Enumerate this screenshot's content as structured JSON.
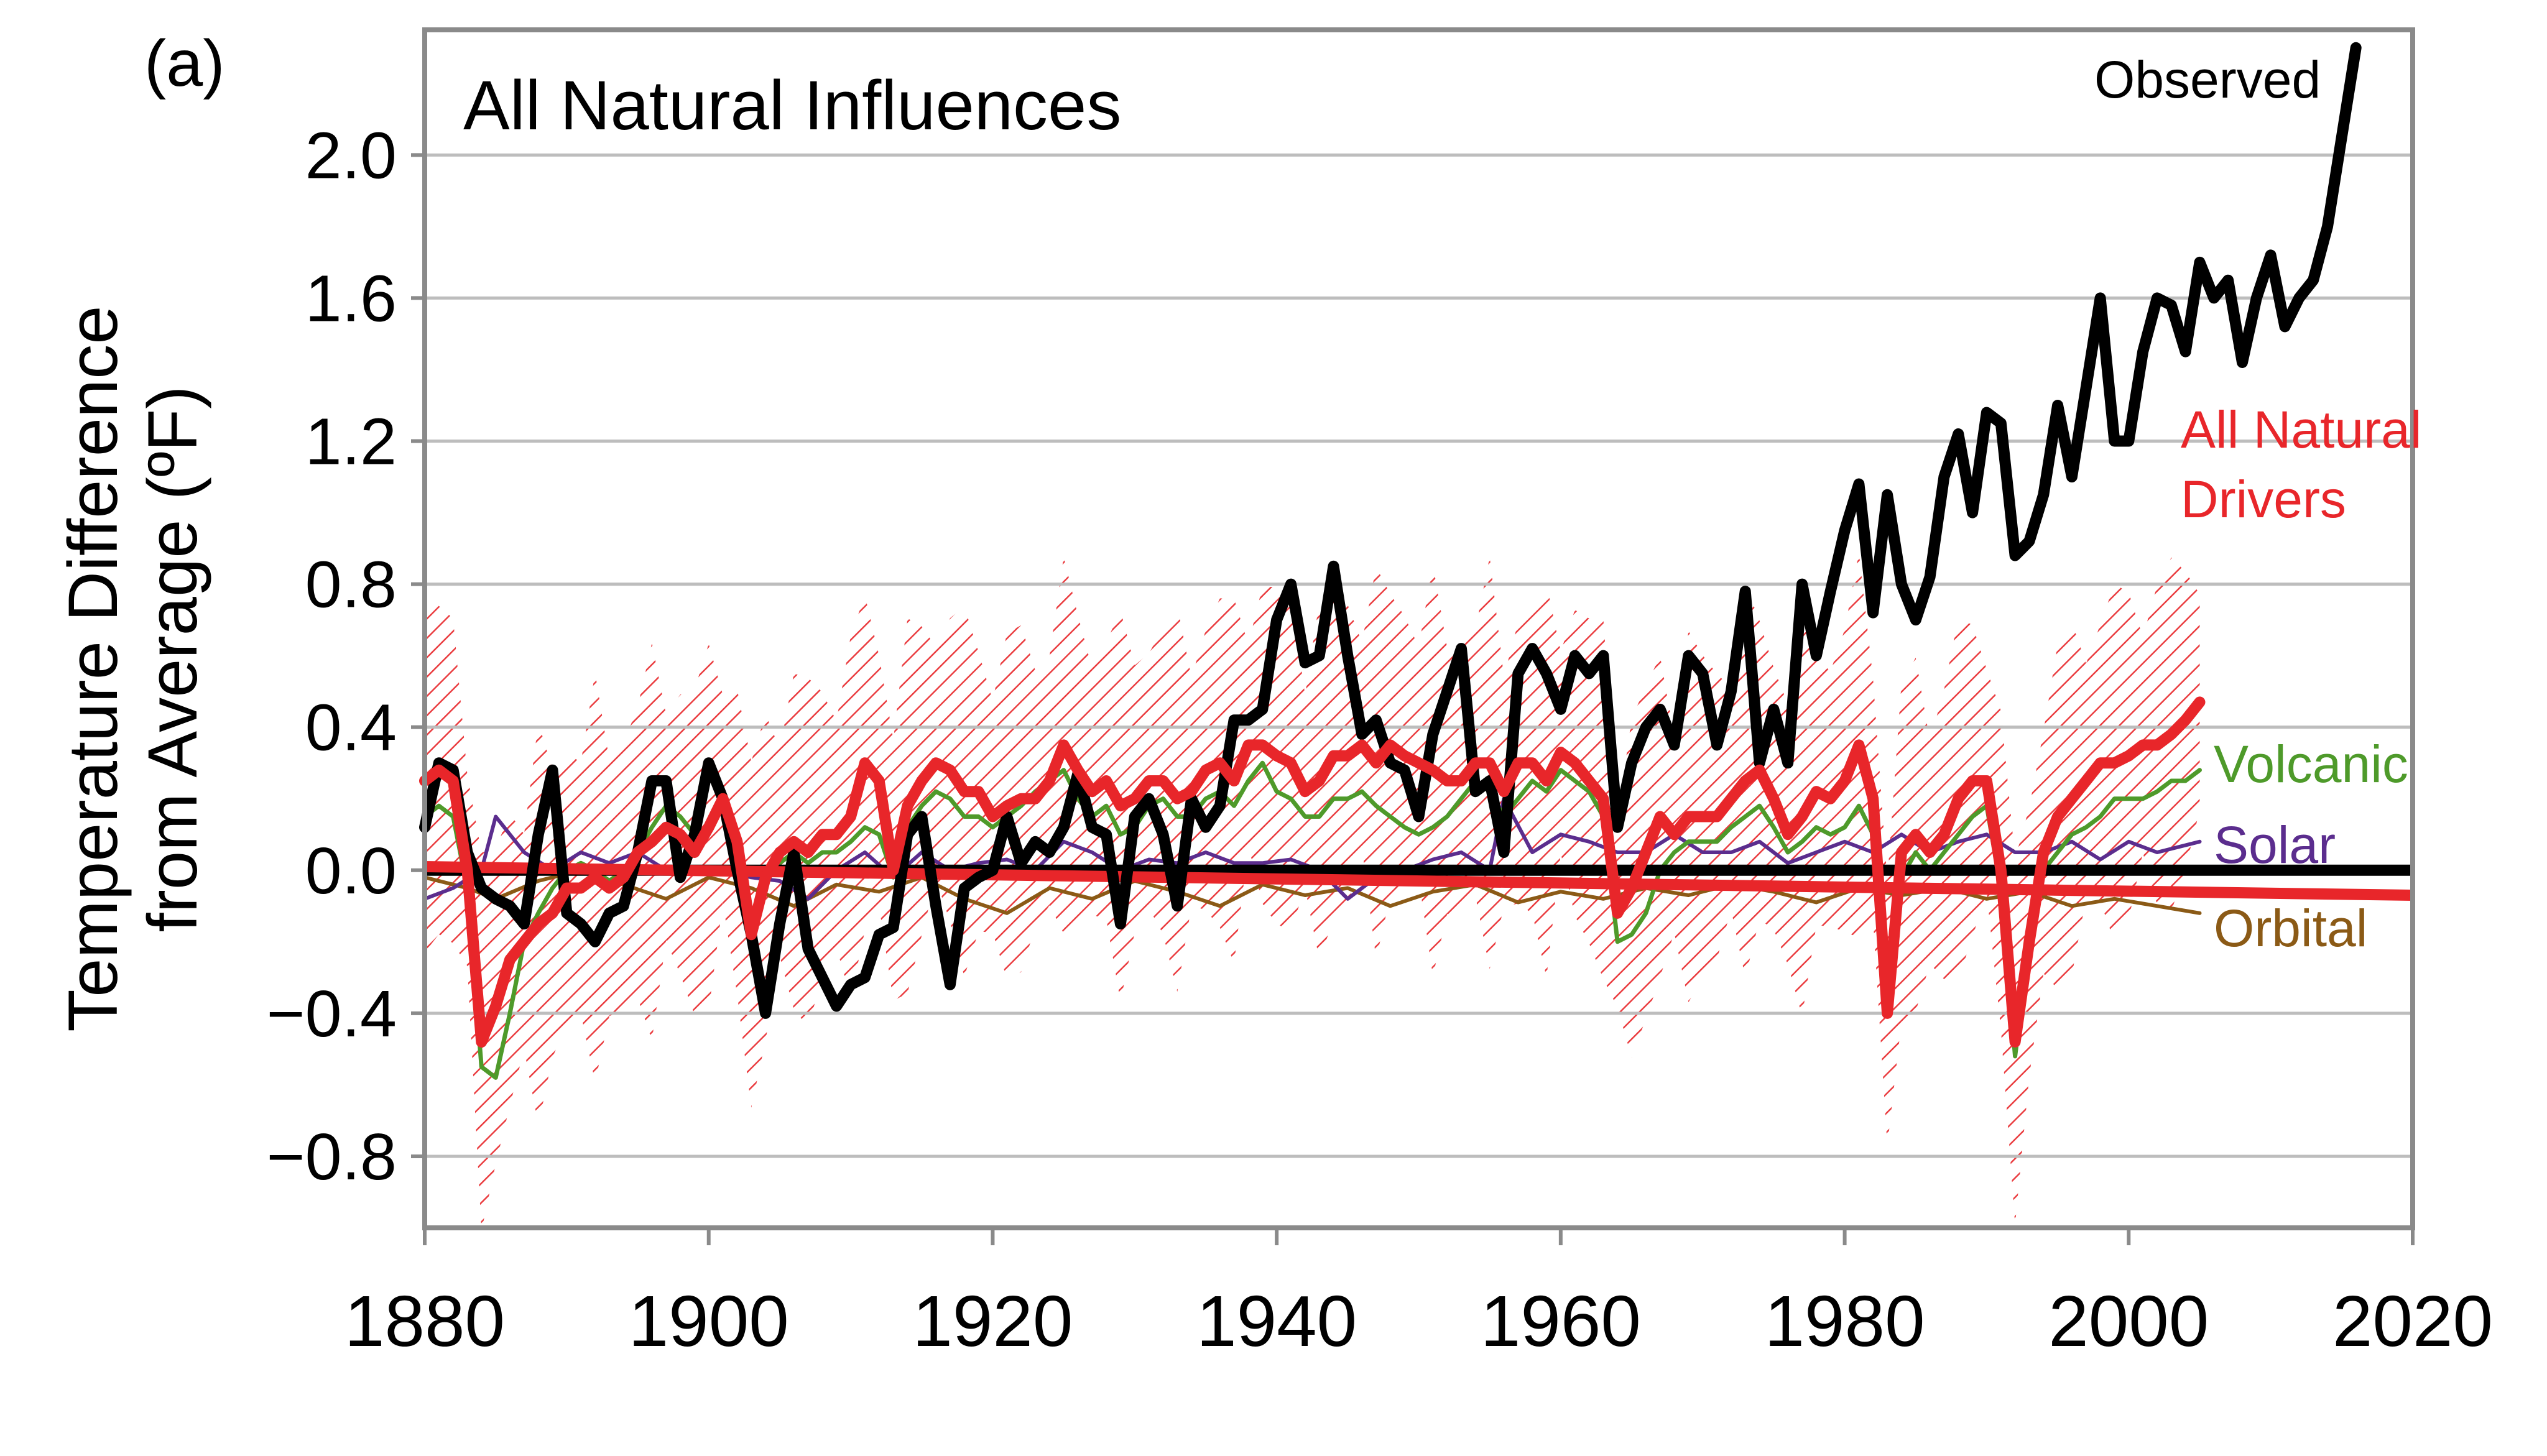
{
  "chart_data": {
    "type": "line",
    "panel_label": "(a)",
    "title": "All Natural Influences",
    "ylabel_lines": [
      "Temperature Difference",
      "from Average (ºF)"
    ],
    "xlabel": "",
    "xlim": [
      1880,
      2020
    ],
    "ylim": [
      -1.0,
      2.35
    ],
    "x_ticks": [
      1880,
      1900,
      1920,
      1940,
      1960,
      1980,
      2000,
      2020
    ],
    "y_ticks": [
      -0.8,
      -0.4,
      0.0,
      0.4,
      0.8,
      1.2,
      1.6,
      2.0
    ],
    "y_tick_labels": [
      "−0.8",
      "−0.4",
      "0.0",
      "0.4",
      "0.8",
      "1.2",
      "1.6",
      "2.0"
    ],
    "grid": "horizontal",
    "colors": {
      "observed": "#000000",
      "all_natural": "#e8262a",
      "volcanic": "#4e9a2a",
      "solar": "#5b2d8e",
      "orbital": "#8b5a16",
      "hatch": "#e8262a",
      "grid": "#bdbdbd",
      "frame": "#8a8a8a"
    },
    "series": [
      {
        "key": "observed",
        "labels": [
          "Observed"
        ],
        "x": [
          1880,
          1881,
          1882,
          1883,
          1884,
          1885,
          1886,
          1887,
          1888,
          1889,
          1890,
          1891,
          1892,
          1893,
          1894,
          1895,
          1896,
          1897,
          1898,
          1899,
          1900,
          1901,
          1902,
          1903,
          1904,
          1905,
          1906,
          1907,
          1908,
          1909,
          1910,
          1911,
          1912,
          1913,
          1914,
          1915,
          1916,
          1917,
          1918,
          1919,
          1920,
          1921,
          1922,
          1923,
          1924,
          1925,
          1926,
          1927,
          1928,
          1929,
          1930,
          1931,
          1932,
          1933,
          1934,
          1935,
          1936,
          1937,
          1938,
          1939,
          1940,
          1941,
          1942,
          1943,
          1944,
          1945,
          1946,
          1947,
          1948,
          1949,
          1950,
          1951,
          1952,
          1953,
          1954,
          1955,
          1956,
          1957,
          1958,
          1959,
          1960,
          1961,
          1962,
          1963,
          1964,
          1965,
          1966,
          1967,
          1968,
          1969,
          1970,
          1971,
          1972,
          1973,
          1974,
          1975,
          1976,
          1977,
          1978,
          1979,
          1980,
          1981,
          1982,
          1983,
          1984,
          1985,
          1986,
          1987,
          1988,
          1989,
          1990,
          1991,
          1992,
          1993,
          1994,
          1995,
          1996,
          1997,
          1998,
          1999,
          2000,
          2001,
          2002,
          2003,
          2004,
          2005,
          2006,
          2007,
          2008,
          2009,
          2010,
          2011,
          2012,
          2013,
          2014,
          2015,
          2016
        ],
        "values": [
          0.12,
          0.3,
          0.28,
          0.05,
          -0.05,
          -0.08,
          -0.1,
          -0.15,
          0.1,
          0.28,
          -0.12,
          -0.15,
          -0.2,
          -0.12,
          -0.1,
          0.05,
          0.25,
          0.25,
          -0.02,
          0.1,
          0.3,
          0.2,
          0.0,
          -0.18,
          -0.4,
          -0.15,
          0.05,
          -0.22,
          -0.3,
          -0.38,
          -0.32,
          -0.3,
          -0.18,
          -0.16,
          0.1,
          0.15,
          -0.1,
          -0.32,
          -0.05,
          -0.02,
          0.0,
          0.15,
          0.02,
          0.08,
          0.05,
          0.12,
          0.27,
          0.12,
          0.1,
          -0.15,
          0.15,
          0.2,
          0.1,
          -0.1,
          0.2,
          0.12,
          0.18,
          0.42,
          0.42,
          0.45,
          0.7,
          0.8,
          0.58,
          0.6,
          0.85,
          0.6,
          0.38,
          0.42,
          0.3,
          0.28,
          0.15,
          0.38,
          0.5,
          0.62,
          0.22,
          0.25,
          0.05,
          0.55,
          0.62,
          0.55,
          0.45,
          0.6,
          0.55,
          0.6,
          0.12,
          0.3,
          0.4,
          0.45,
          0.35,
          0.6,
          0.55,
          0.35,
          0.5,
          0.78,
          0.3,
          0.45,
          0.3,
          0.8,
          0.6,
          0.78,
          0.95,
          1.08,
          0.72,
          1.05,
          0.8,
          0.7,
          0.82,
          1.1,
          1.22,
          1.0,
          1.28,
          1.25,
          0.88,
          0.92,
          1.05,
          1.3,
          1.1,
          1.35,
          1.6,
          1.2,
          1.2,
          1.45,
          1.6,
          1.58,
          1.45,
          1.7,
          1.6,
          1.65,
          1.42,
          1.6,
          1.72,
          1.52,
          1.6,
          1.65,
          1.8,
          2.05,
          2.3
        ]
      },
      {
        "key": "all_natural",
        "labels": [
          "All Natural",
          "Drivers"
        ],
        "x": [
          1880,
          1881,
          1882,
          1883,
          1884,
          1885,
          1886,
          1887,
          1888,
          1889,
          1890,
          1891,
          1892,
          1893,
          1894,
          1895,
          1896,
          1897,
          1898,
          1899,
          1900,
          1901,
          1902,
          1903,
          1904,
          1905,
          1906,
          1907,
          1908,
          1909,
          1910,
          1911,
          1912,
          1913,
          1914,
          1915,
          1916,
          1917,
          1918,
          1919,
          1920,
          1921,
          1922,
          1923,
          1924,
          1925,
          1926,
          1927,
          1928,
          1929,
          1930,
          1931,
          1932,
          1933,
          1934,
          1935,
          1936,
          1937,
          1938,
          1939,
          1940,
          1941,
          1942,
          1943,
          1944,
          1945,
          1946,
          1947,
          1948,
          1949,
          1950,
          1951,
          1952,
          1953,
          1954,
          1955,
          1956,
          1957,
          1958,
          1959,
          1960,
          1961,
          1962,
          1963,
          1964,
          1965,
          1966,
          1967,
          1968,
          1969,
          1970,
          1971,
          1972,
          1973,
          1974,
          1975,
          1976,
          1977,
          1978,
          1979,
          1980,
          1981,
          1982,
          1983,
          1984,
          1985,
          1986,
          1987,
          1988,
          1989,
          1990,
          1991,
          1992,
          1993,
          1994,
          1995,
          1996,
          1997,
          1998,
          1999,
          2000,
          2001,
          2002,
          2003,
          2004,
          2005
        ],
        "values": [
          0.25,
          0.28,
          0.25,
          0.0,
          -0.48,
          -0.38,
          -0.25,
          -0.2,
          -0.15,
          -0.12,
          -0.05,
          -0.05,
          -0.02,
          -0.05,
          -0.02,
          0.05,
          0.08,
          0.12,
          0.1,
          0.05,
          0.12,
          0.2,
          0.08,
          -0.18,
          -0.02,
          0.05,
          0.08,
          0.05,
          0.1,
          0.1,
          0.15,
          0.3,
          0.25,
          0.0,
          0.18,
          0.25,
          0.3,
          0.28,
          0.22,
          0.22,
          0.15,
          0.18,
          0.2,
          0.2,
          0.25,
          0.35,
          0.28,
          0.22,
          0.25,
          0.18,
          0.2,
          0.25,
          0.25,
          0.2,
          0.22,
          0.28,
          0.3,
          0.25,
          0.35,
          0.35,
          0.32,
          0.3,
          0.22,
          0.25,
          0.32,
          0.32,
          0.35,
          0.3,
          0.35,
          0.32,
          0.3,
          0.28,
          0.25,
          0.25,
          0.3,
          0.3,
          0.22,
          0.3,
          0.3,
          0.25,
          0.33,
          0.3,
          0.25,
          0.2,
          -0.12,
          -0.05,
          0.05,
          0.15,
          0.1,
          0.15,
          0.15,
          0.15,
          0.2,
          0.25,
          0.28,
          0.2,
          0.1,
          0.15,
          0.22,
          0.2,
          0.25,
          0.35,
          0.2,
          -0.4,
          0.05,
          0.1,
          0.05,
          0.1,
          0.2,
          0.25,
          0.25,
          0.0,
          -0.48,
          -0.2,
          0.05,
          0.15,
          0.2,
          0.25,
          0.3,
          0.3,
          0.32,
          0.35,
          0.35,
          0.38,
          0.42,
          0.47
        ]
      },
      {
        "key": "volcanic",
        "labels": [
          "Volcanic"
        ],
        "x": [
          1880,
          1881,
          1882,
          1883,
          1884,
          1885,
          1886,
          1887,
          1888,
          1889,
          1890,
          1891,
          1892,
          1893,
          1894,
          1895,
          1896,
          1897,
          1898,
          1899,
          1900,
          1901,
          1902,
          1903,
          1904,
          1905,
          1906,
          1907,
          1908,
          1909,
          1910,
          1911,
          1912,
          1913,
          1914,
          1915,
          1916,
          1917,
          1918,
          1919,
          1920,
          1921,
          1922,
          1923,
          1924,
          1925,
          1926,
          1927,
          1928,
          1929,
          1930,
          1931,
          1932,
          1933,
          1934,
          1935,
          1936,
          1937,
          1938,
          1939,
          1940,
          1941,
          1942,
          1943,
          1944,
          1945,
          1946,
          1947,
          1948,
          1949,
          1950,
          1951,
          1952,
          1953,
          1954,
          1955,
          1956,
          1957,
          1958,
          1959,
          1960,
          1961,
          1962,
          1963,
          1964,
          1965,
          1966,
          1967,
          1968,
          1969,
          1970,
          1971,
          1972,
          1973,
          1974,
          1975,
          1976,
          1977,
          1978,
          1979,
          1980,
          1981,
          1982,
          1983,
          1984,
          1985,
          1986,
          1987,
          1988,
          1989,
          1990,
          1991,
          1992,
          1993,
          1994,
          1995,
          1996,
          1997,
          1998,
          1999,
          2000,
          2001,
          2002,
          2003,
          2004,
          2005
        ],
        "values": [
          0.15,
          0.18,
          0.15,
          -0.05,
          -0.55,
          -0.58,
          -0.4,
          -0.2,
          -0.12,
          -0.05,
          0.0,
          0.02,
          0.0,
          -0.03,
          0.0,
          0.05,
          0.12,
          0.18,
          0.15,
          0.1,
          0.12,
          0.18,
          0.1,
          -0.15,
          0.0,
          0.02,
          0.05,
          0.02,
          0.05,
          0.05,
          0.08,
          0.12,
          0.1,
          -0.02,
          0.12,
          0.18,
          0.22,
          0.2,
          0.15,
          0.15,
          0.12,
          0.15,
          0.18,
          0.22,
          0.25,
          0.28,
          0.2,
          0.15,
          0.18,
          0.1,
          0.12,
          0.18,
          0.2,
          0.15,
          0.15,
          0.2,
          0.22,
          0.18,
          0.25,
          0.3,
          0.22,
          0.2,
          0.15,
          0.15,
          0.2,
          0.2,
          0.22,
          0.18,
          0.15,
          0.12,
          0.1,
          0.12,
          0.15,
          0.2,
          0.25,
          0.22,
          0.15,
          0.2,
          0.25,
          0.22,
          0.28,
          0.25,
          0.22,
          0.15,
          -0.2,
          -0.18,
          -0.12,
          0.0,
          0.05,
          0.08,
          0.08,
          0.08,
          0.12,
          0.15,
          0.18,
          0.12,
          0.05,
          0.08,
          0.12,
          0.1,
          0.12,
          0.18,
          0.1,
          -0.35,
          -0.02,
          0.05,
          0.0,
          0.05,
          0.1,
          0.15,
          0.18,
          -0.05,
          -0.52,
          -0.2,
          0.0,
          0.05,
          0.1,
          0.12,
          0.15,
          0.2,
          0.2,
          0.2,
          0.22,
          0.25,
          0.25,
          0.28
        ]
      },
      {
        "key": "solar",
        "labels": [
          "Solar"
        ],
        "x": [
          1880,
          1882,
          1884,
          1885,
          1887,
          1889,
          1891,
          1893,
          1895,
          1897,
          1899,
          1901,
          1903,
          1905,
          1907,
          1909,
          1911,
          1913,
          1915,
          1917,
          1919,
          1921,
          1923,
          1925,
          1927,
          1929,
          1931,
          1933,
          1935,
          1937,
          1939,
          1941,
          1943,
          1945,
          1947,
          1949,
          1951,
          1953,
          1955,
          1956,
          1958,
          1960,
          1962,
          1964,
          1966,
          1968,
          1970,
          1972,
          1974,
          1976,
          1978,
          1980,
          1982,
          1984,
          1986,
          1988,
          1990,
          1992,
          1994,
          1996,
          1998,
          2000,
          2002,
          2005
        ],
        "values": [
          -0.08,
          -0.05,
          0.0,
          0.15,
          0.05,
          0.0,
          0.05,
          0.02,
          0.05,
          0.0,
          0.0,
          0.0,
          -0.02,
          -0.03,
          -0.08,
          0.0,
          0.05,
          -0.02,
          0.05,
          0.0,
          0.02,
          0.03,
          0.0,
          0.08,
          0.05,
          0.0,
          0.03,
          0.02,
          0.05,
          0.02,
          0.02,
          0.03,
          0.0,
          -0.08,
          -0.02,
          0.0,
          0.03,
          0.05,
          0.0,
          0.2,
          0.05,
          0.1,
          0.08,
          0.05,
          0.05,
          0.1,
          0.05,
          0.05,
          0.08,
          0.02,
          0.05,
          0.08,
          0.05,
          0.1,
          0.05,
          0.08,
          0.1,
          0.05,
          0.05,
          0.08,
          0.03,
          0.08,
          0.05,
          0.08
        ]
      },
      {
        "key": "orbital",
        "labels": [
          "Orbital"
        ],
        "x": [
          1880,
          1883,
          1885,
          1888,
          1891,
          1894,
          1897,
          1900,
          1903,
          1906,
          1909,
          1912,
          1915,
          1918,
          1921,
          1924,
          1927,
          1930,
          1933,
          1936,
          1939,
          1942,
          1945,
          1948,
          1951,
          1954,
          1957,
          1960,
          1963,
          1966,
          1969,
          1972,
          1975,
          1978,
          1981,
          1984,
          1987,
          1990,
          1993,
          1996,
          1999,
          2002,
          2005
        ],
        "values": [
          -0.02,
          -0.05,
          -0.08,
          -0.03,
          0.0,
          -0.04,
          -0.08,
          -0.02,
          -0.05,
          -0.1,
          -0.04,
          -0.06,
          -0.02,
          -0.08,
          -0.12,
          -0.05,
          -0.08,
          -0.03,
          -0.06,
          -0.1,
          -0.04,
          -0.07,
          -0.05,
          -0.1,
          -0.06,
          -0.04,
          -0.09,
          -0.06,
          -0.08,
          -0.05,
          -0.07,
          -0.04,
          -0.06,
          -0.09,
          -0.05,
          -0.07,
          -0.05,
          -0.08,
          -0.06,
          -0.1,
          -0.08,
          -0.1,
          -0.12
        ]
      }
    ]
  }
}
